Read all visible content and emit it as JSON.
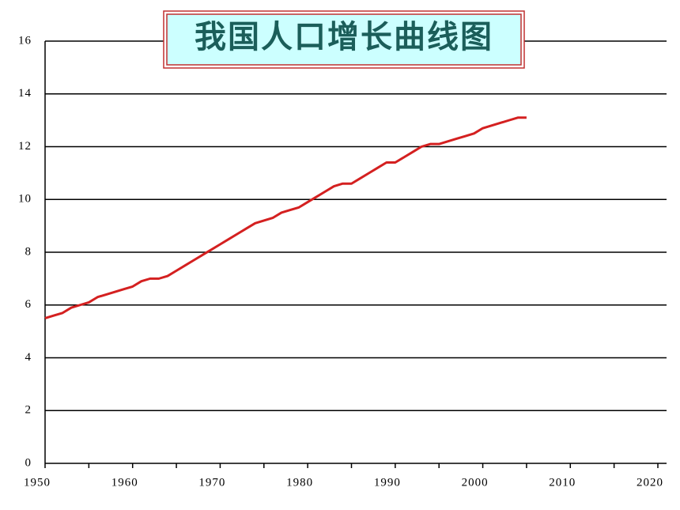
{
  "chart_data": {
    "type": "line",
    "title": "我国人口增长曲线图",
    "x": [
      1950,
      1951,
      1952,
      1953,
      1954,
      1955,
      1956,
      1957,
      1958,
      1959,
      1960,
      1961,
      1962,
      1963,
      1964,
      1965,
      1966,
      1967,
      1968,
      1969,
      1970,
      1971,
      1972,
      1973,
      1974,
      1975,
      1976,
      1977,
      1978,
      1979,
      1980,
      1981,
      1982,
      1983,
      1984,
      1985,
      1986,
      1987,
      1988,
      1989,
      1990,
      1991,
      1992,
      1993,
      1994,
      1995,
      1996,
      1997,
      1998,
      1999,
      2000,
      2001,
      2002,
      2003,
      2004,
      2005
    ],
    "series": [
      {
        "color": "#d42020",
        "values": [
          5.5,
          5.6,
          5.7,
          5.9,
          6.0,
          6.1,
          6.3,
          6.4,
          6.5,
          6.6,
          6.7,
          6.9,
          7.0,
          7.0,
          7.1,
          7.3,
          7.5,
          7.7,
          7.9,
          8.1,
          8.3,
          8.5,
          8.7,
          8.9,
          9.1,
          9.2,
          9.3,
          9.5,
          9.6,
          9.7,
          9.9,
          10.1,
          10.3,
          10.5,
          10.6,
          10.6,
          10.8,
          11.0,
          11.2,
          11.4,
          11.4,
          11.6,
          11.8,
          12.0,
          12.1,
          12.1,
          12.2,
          12.3,
          12.4,
          12.5,
          12.7,
          12.8,
          12.9,
          13.0,
          13.1,
          13.1
        ]
      }
    ],
    "xlim": [
      1950,
      2020
    ],
    "xticks": [
      1950,
      1960,
      1970,
      1980,
      1990,
      2000,
      2010,
      2020
    ],
    "ylim": [
      0,
      16
    ],
    "yticks": [
      0,
      2,
      4,
      6,
      8,
      10,
      12,
      14,
      16
    ],
    "grid": true
  }
}
